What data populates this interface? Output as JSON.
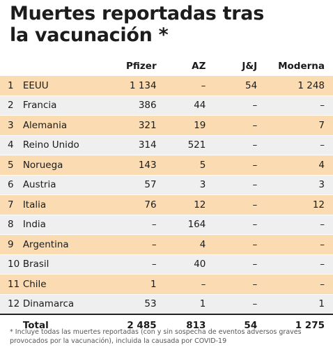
{
  "title_line1": "Muertes reportadas tras",
  "title_line2": "la vacunación *",
  "headers": {
    "num": "",
    "country": "",
    "pfizer": "Pfizer",
    "az": "AZ",
    "jj": "J&J",
    "moderna": "Moderna"
  },
  "rows": [
    {
      "num": "1",
      "country": "EEUU",
      "pfizer": "1 134",
      "az": "–",
      "jj": "54",
      "moderna": "1 248"
    },
    {
      "num": "2",
      "country": "Francia",
      "pfizer": "386",
      "az": "44",
      "jj": "–",
      "moderna": "–"
    },
    {
      "num": "3",
      "country": "Alemania",
      "pfizer": "321",
      "az": "19",
      "jj": "–",
      "moderna": "7"
    },
    {
      "num": "4",
      "country": "Reino Unido",
      "pfizer": "314",
      "az": "521",
      "jj": "–",
      "moderna": "–"
    },
    {
      "num": "5",
      "country": "Noruega",
      "pfizer": "143",
      "az": "5",
      "jj": "–",
      "moderna": "4"
    },
    {
      "num": "6",
      "country": "Austria",
      "pfizer": "57",
      "az": "3",
      "jj": "–",
      "moderna": "3"
    },
    {
      "num": "7",
      "country": "Italia",
      "pfizer": "76",
      "az": "12",
      "jj": "–",
      "moderna": "12"
    },
    {
      "num": "8",
      "country": "India",
      "pfizer": "–",
      "az": "164",
      "jj": "–",
      "moderna": "–"
    },
    {
      "num": "9",
      "country": "Argentina",
      "pfizer": "–",
      "az": "4",
      "jj": "–",
      "moderna": "–"
    },
    {
      "num": "10",
      "country": "Brasil",
      "pfizer": "–",
      "az": "40",
      "jj": "–",
      "moderna": "–"
    },
    {
      "num": "11",
      "country": "Chile",
      "pfizer": "1",
      "az": "–",
      "jj": "–",
      "moderna": "–"
    },
    {
      "num": "12",
      "country": "Dinamarca",
      "pfizer": "53",
      "az": "1",
      "jj": "–",
      "moderna": "1"
    }
  ],
  "total": {
    "label": "Total",
    "pfizer": "2 485",
    "az": "813",
    "jj": "54",
    "moderna": "1 275"
  },
  "footnote": "* Incluye todas las muertes reportadas (con y sin sospecha de eventos adversos graves provocados por la vacunación), incluida la causada por COVID-19",
  "colors": {
    "odd_row": "#fbdcb2",
    "even_row": "#efefef",
    "title": "#1c1c1c"
  }
}
